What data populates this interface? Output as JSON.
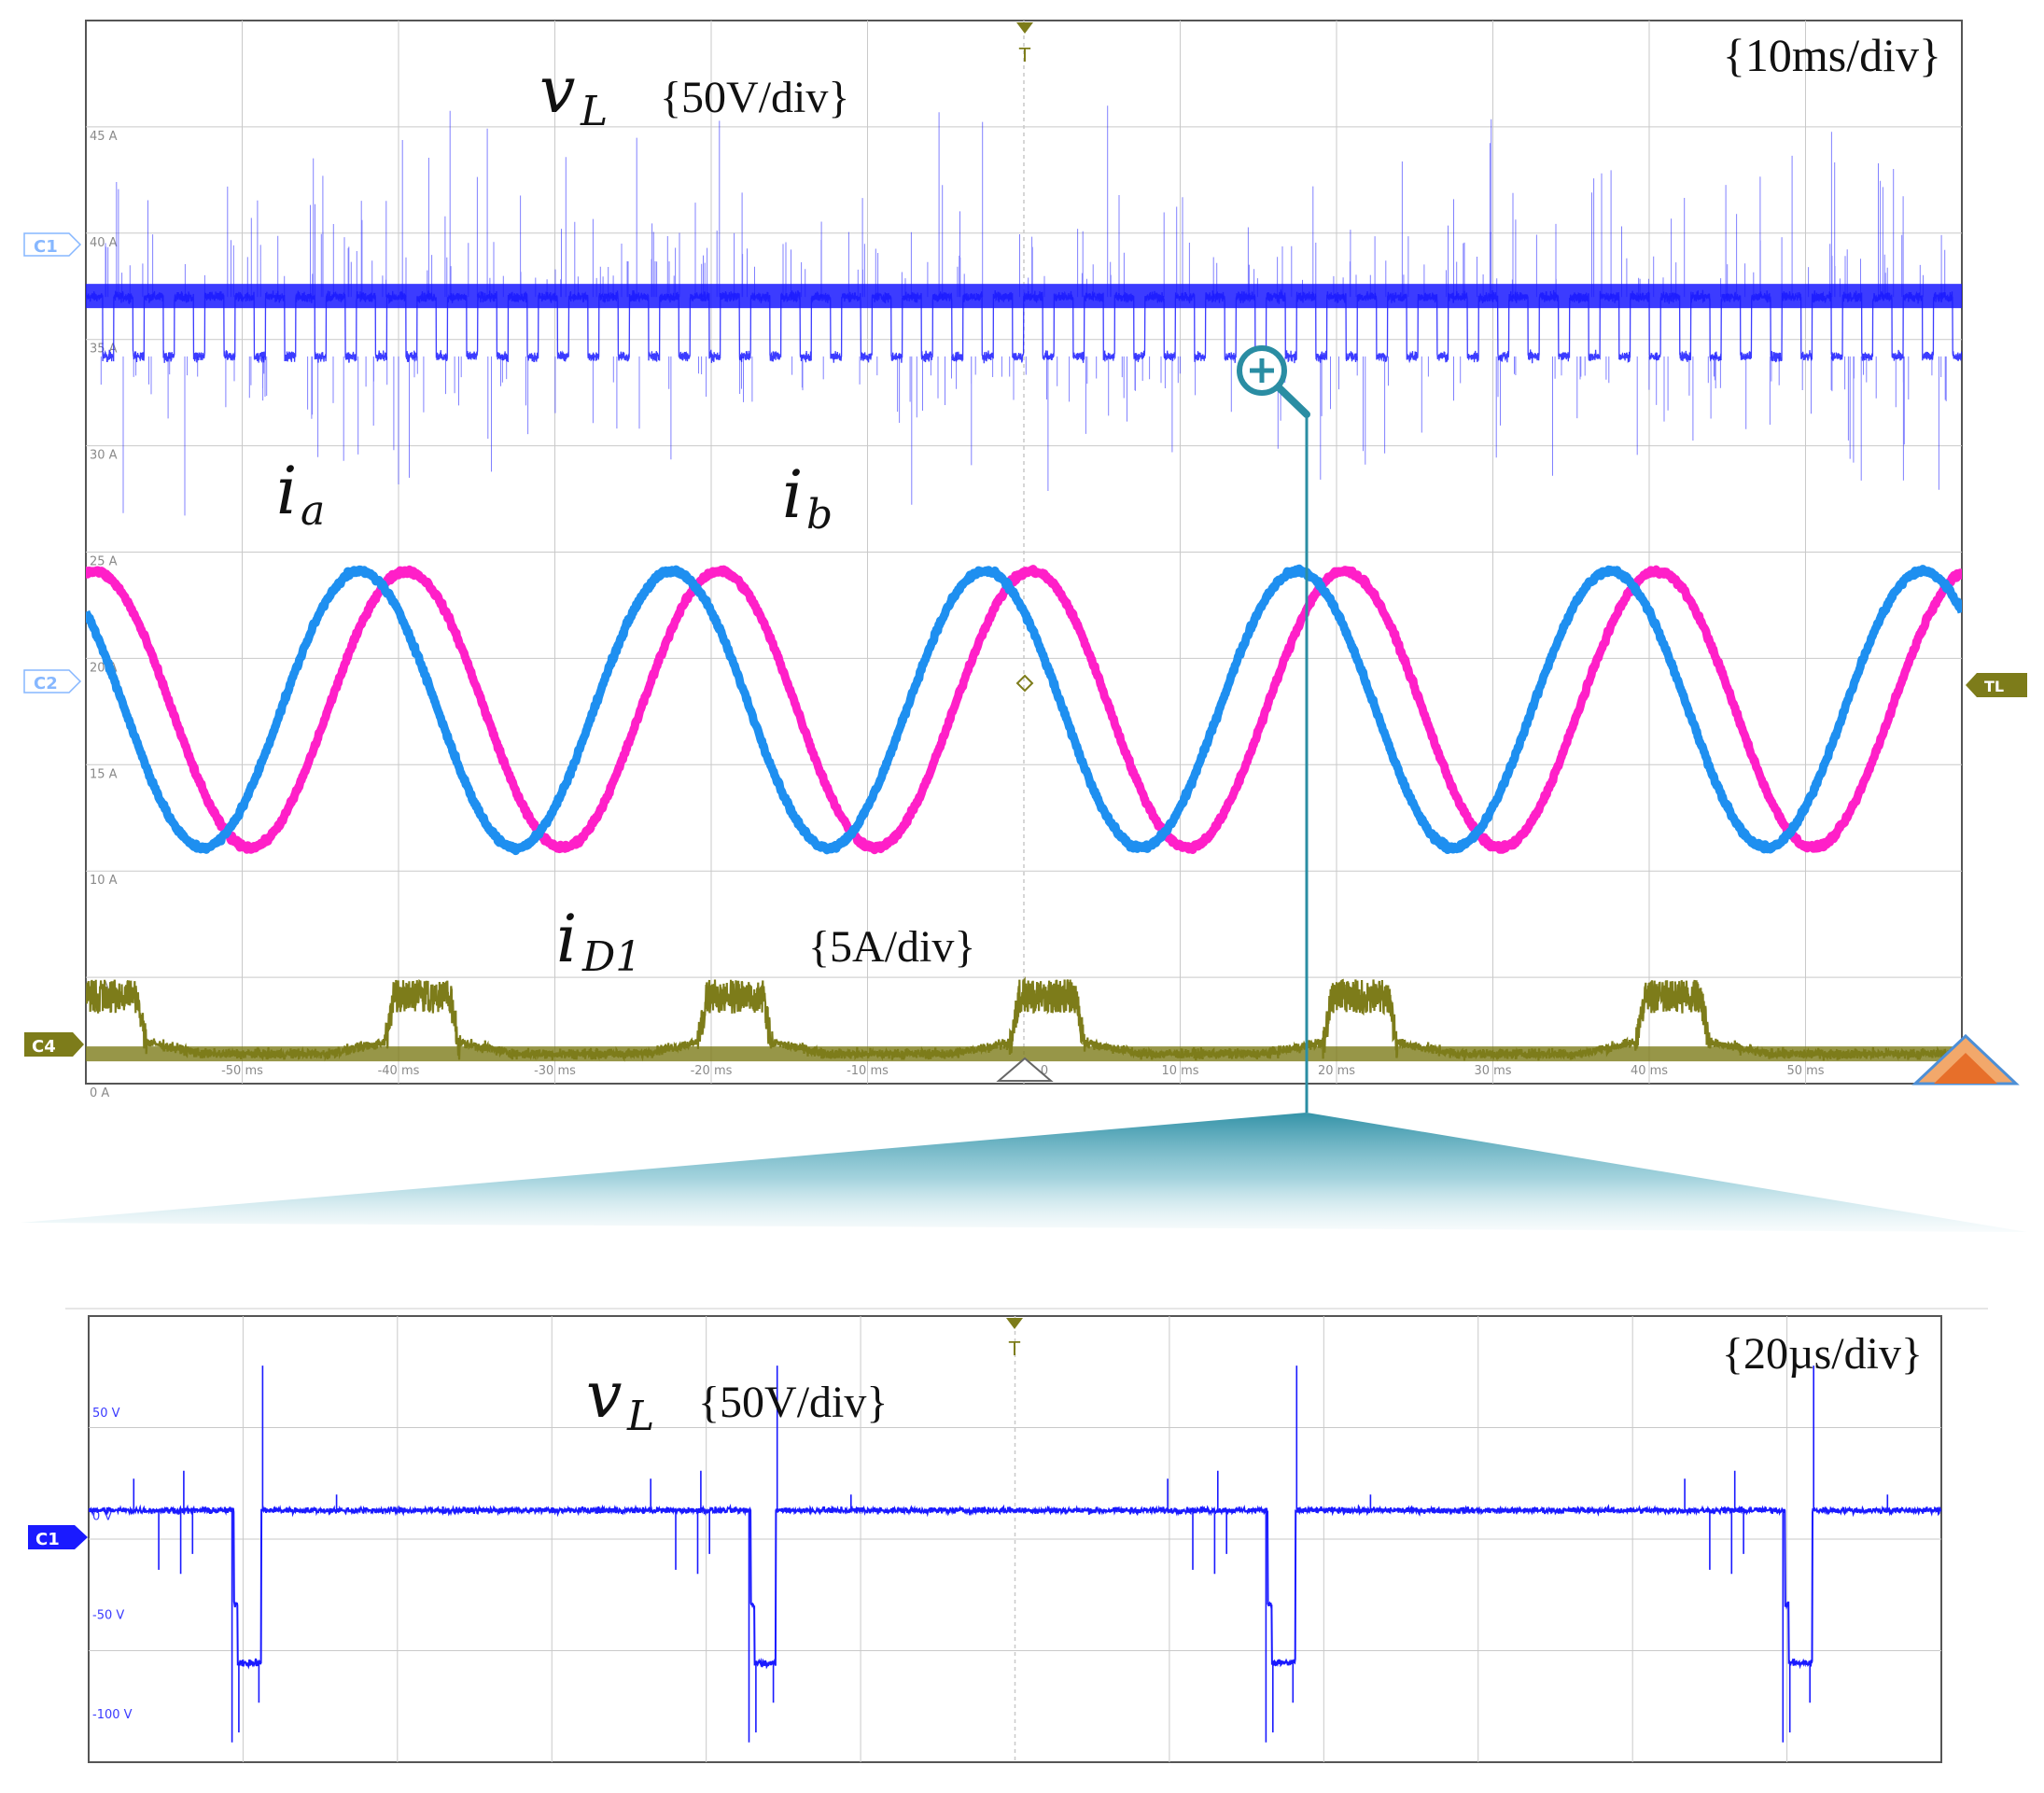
{
  "chart_data": [
    {
      "type": "line",
      "panel": "overview",
      "timebase": "{10ms/div}",
      "x_ticks": [
        "-50 ms",
        "-40 ms",
        "-30 ms",
        "-20 ms",
        "-10 ms",
        "0",
        "10 ms",
        "20 ms",
        "30 ms",
        "40 ms",
        "50 ms"
      ],
      "xlim": [
        -60,
        60
      ],
      "y_ticks": [
        "45 A",
        "40 A",
        "35 A",
        "30 A",
        "25 A",
        "20 A",
        "15 A",
        "10 A",
        "5 A",
        "0 A"
      ],
      "ylim": [
        0,
        50
      ],
      "grid": true,
      "channels": [
        "C1",
        "C2",
        "C4"
      ],
      "trigger_marker": "T",
      "trigger_level_label": "TL",
      "series": [
        {
          "name": "vL",
          "color": "#1a1aff",
          "scale_label": "{50V/div}",
          "level": 37,
          "pulse_low": 34.2,
          "switching_period_ms": 1.94
        },
        {
          "name": "ia",
          "color": "#1e8ff0",
          "offset": 17.6,
          "amplitude": 6.5,
          "period_ms": 20,
          "peak_times_ms": [
            -42.5,
            -22.5,
            -2.5,
            17.5,
            37.5,
            57.5
          ]
        },
        {
          "name": "ib",
          "color": "#ff1fc8",
          "offset": 17.6,
          "amplitude": 6.5,
          "period_ms": 20,
          "peak_times_ms": [
            -59.5,
            -38.6,
            -18.6,
            1.4,
            21.4,
            41.4
          ]
        },
        {
          "name": "iD1",
          "color": "#7d7c1a",
          "scale_label": "{5A/div}",
          "baseline": 1.4,
          "pulse_peak": 4.9,
          "pulse_times_ms": [
            -58.5,
            -38.5,
            -18.5,
            1.5,
            21.5,
            41.5
          ]
        }
      ]
    },
    {
      "type": "line",
      "panel": "zoom",
      "timebase": "{20µs/div}",
      "y_ticks": [
        "50 V",
        "0 V",
        "-50 V",
        "-100 V"
      ],
      "ylim": [
        -125,
        100
      ],
      "grid": true,
      "channels": [
        "C1"
      ],
      "trigger_marker": "T",
      "series": [
        {
          "name": "vL",
          "color": "#1a1aff",
          "scale_label": "{50V/div}",
          "high_level": 2,
          "low_level": -75,
          "low_pulses_us": [
            [
              23.2,
              27.6
            ],
            [
              105.8,
              109.8
            ],
            [
              188.4,
              192.8
            ],
            [
              271.0,
              275.4
            ]
          ],
          "xlim_us": [
            0,
            296
          ]
        }
      ]
    }
  ],
  "labels": {
    "vL_sym": "v",
    "vL_sub": "L",
    "ia_sym": "i",
    "ia_sub": "a",
    "ib_sym": "i",
    "ib_sub": "b",
    "iD1_sym": "i",
    "iD1_sub": "D1"
  },
  "colors": {
    "zoom_connector": "#2a8da3",
    "grid": "#c9c9c9",
    "frame": "#555555"
  }
}
